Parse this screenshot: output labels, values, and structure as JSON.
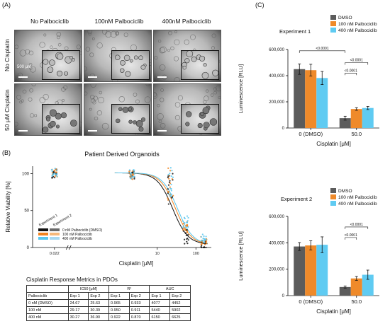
{
  "panel_a": {
    "letter": "(A)",
    "columns": [
      "No Palbociclib",
      "100nM Palbociclib",
      "400nM Palbociclib"
    ],
    "rows": [
      "No Cisplatin",
      "50 μM Cisplatin"
    ],
    "scale_label": "500 μm"
  },
  "panel_b": {
    "letter": "(B)",
    "legend_exp": [
      "Experiment 1",
      "Experiment 2"
    ],
    "table_title": "Cisplatin Response Metrics in PDOs",
    "table": {
      "group_headers": [
        "IC50 [μM]",
        "R²",
        "AUC"
      ],
      "sub_headers": [
        "Palbociclib",
        "Exp 1",
        "Exp 2",
        "Exp 1",
        "Exp 2",
        "Exp 1",
        "Exp 2"
      ],
      "rows": [
        [
          "0 nM (DMSO)",
          "24.67",
          "25.63",
          "0.965",
          "0.933",
          "4077",
          "4452"
        ],
        [
          "100 nM",
          "29.17",
          "30.39",
          "0.950",
          "0.911",
          "5440",
          "5902"
        ],
        [
          "400 nM",
          "30.27",
          "36.90",
          "0.922",
          "0.870",
          "6150",
          "6625"
        ]
      ]
    }
  },
  "panel_c": {
    "letter": "(C)"
  },
  "chart_data": [
    {
      "type": "scatter",
      "title": "Patient Derived Organoids",
      "xlabel": "Cisplatin [μM]",
      "ylabel": "Relative Viability [%]",
      "x_scale": "log",
      "x_ticks": [
        "0.022",
        "10",
        "100"
      ],
      "y_ticks": [
        "0",
        "50",
        "100"
      ],
      "ylim": [
        0,
        110
      ],
      "x_values": [
        0.022,
        2.2,
        22,
        55,
        160
      ],
      "series": [
        {
          "name": "0 nM Palbociclib (DMSO)",
          "color": "#111111",
          "mean": [
            100,
            97,
            80,
            15,
            4
          ],
          "ic50": 25.1
        },
        {
          "name": "100 nM Palbociclib",
          "color": "#f0821e",
          "mean": [
            100,
            98,
            86,
            25,
            9
          ],
          "ic50": 29.8
        },
        {
          "name": "400 nM Palbociclib",
          "color": "#58c6ee",
          "mean": [
            101,
            99,
            88,
            34,
            12
          ],
          "ic50": 33.5
        }
      ]
    },
    {
      "type": "bar",
      "title": "Experiment 1",
      "categories": [
        "0 (DMSO)",
        "50.0"
      ],
      "xlabel": "Cisplatin [μM]",
      "ylabel": "Luminescence [RLU]",
      "ylim": [
        0,
        600000
      ],
      "y_ticks": [
        "0",
        "200,000",
        "400,000",
        "600,000"
      ],
      "series": [
        {
          "name": "DMSO",
          "color": "#5c5c5c",
          "values": [
            450000,
            75000
          ],
          "err": [
            40000,
            15000
          ]
        },
        {
          "name": "100 nM Palbociclib",
          "color": "#ef8a2a",
          "values": [
            442000,
            145000
          ],
          "err": [
            45000,
            10000
          ]
        },
        {
          "name": "400 nM Palbociclib",
          "color": "#5fcbf2",
          "values": [
            382000,
            153000
          ],
          "err": [
            50000,
            12000
          ]
        }
      ],
      "annotations": [
        "<0.0001",
        "<0.0001",
        "<0.0001"
      ]
    },
    {
      "type": "bar",
      "title": "Experiment 2",
      "categories": [
        "0 (DMSO)",
        "50.0"
      ],
      "xlabel": "Cisplatin [μM]",
      "ylabel": "Luminescence [RLU]",
      "ylim": [
        0,
        600000
      ],
      "y_ticks": [
        "0",
        "200,000",
        "400,000",
        "600,000"
      ],
      "series": [
        {
          "name": "DMSO",
          "color": "#5c5c5c",
          "values": [
            372000,
            65000
          ],
          "err": [
            30000,
            8000
          ]
        },
        {
          "name": "100 nM Palbociclib",
          "color": "#ef8a2a",
          "values": [
            380000,
            130000
          ],
          "err": [
            35000,
            15000
          ]
        },
        {
          "name": "400 nM Palbociclib",
          "color": "#5fcbf2",
          "values": [
            385000,
            158000
          ],
          "err": [
            60000,
            35000
          ]
        }
      ],
      "annotations": [
        "<0.0001",
        "<0.0001"
      ]
    }
  ]
}
